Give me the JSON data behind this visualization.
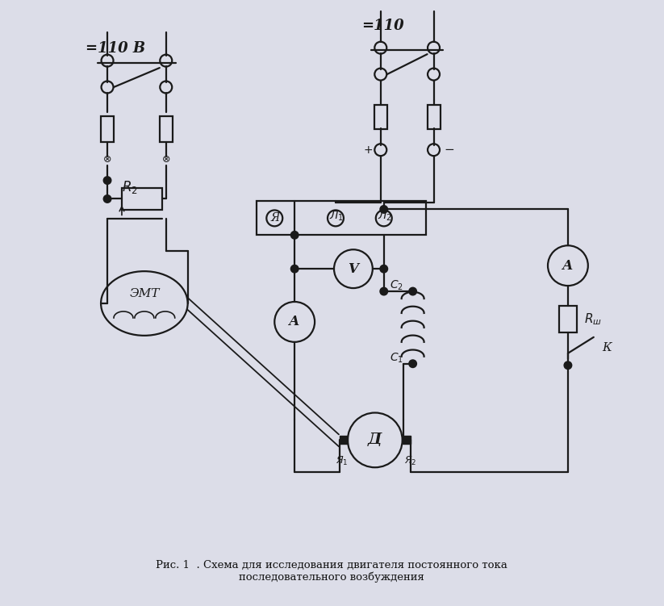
{
  "title": "Рис. 1  . Схема для исследования двигателя постоянного тока\nпоследовательного возбуждения",
  "bg_color": "#dcdde8",
  "line_color": "#1a1a1a",
  "lw": 1.6,
  "label_110V_left": "=110 В",
  "label_110V_right": "=110",
  "label_R2": "$R_2$",
  "label_EMT": "ЭМТ",
  "label_Ya": "Я",
  "label_L1": "$Л_1$",
  "label_L2": "$Л_2$",
  "label_V": "V",
  "label_A": "А",
  "label_C2": "$C_2$",
  "label_C1": "$C_1$",
  "label_D": "Д",
  "label_Ya1": "$Я_1$",
  "label_Ya2": "$Я_2$",
  "label_Rsh": "$R_ш$",
  "label_K": "К",
  "label_plus": "+",
  "label_minus": "−"
}
